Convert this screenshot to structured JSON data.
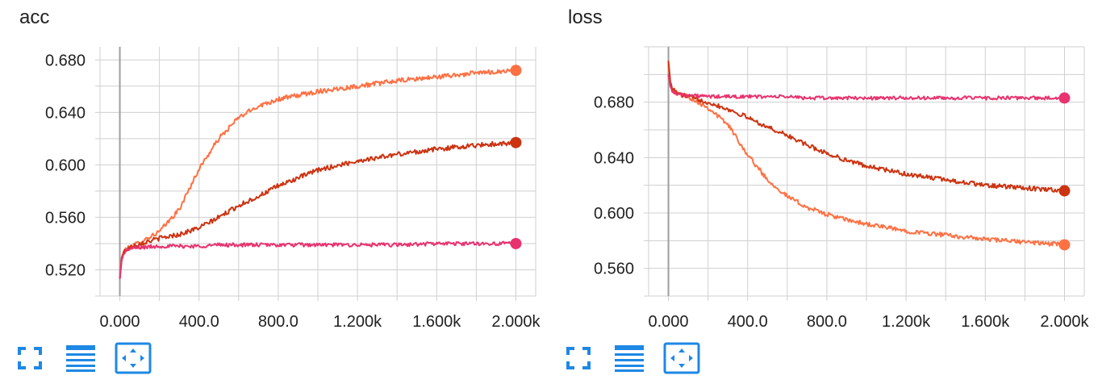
{
  "cards": [
    {
      "title": "acc",
      "toolbar": {
        "fullscreen_icon": "fullscreen-icon",
        "data_table_icon": "data-table-icon",
        "fit_domain_icon": "fit-domain-icon"
      }
    },
    {
      "title": "loss",
      "toolbar": {
        "fullscreen_icon": "fullscreen-icon",
        "data_table_icon": "data-table-icon",
        "fit_domain_icon": "fit-domain-icon"
      }
    }
  ],
  "colors": {
    "series_orange": "#ff7043",
    "series_dark_red": "#cc3311",
    "series_pink": "#e8336e",
    "grid": "#cfcfcf",
    "axis_zero_line": "#9e9e9e",
    "toolbar_icon": "#1e88e5"
  },
  "chart_data": [
    {
      "type": "line",
      "title": "acc",
      "xlabel": "",
      "ylabel": "",
      "xlim": [
        -100,
        2100
      ],
      "ylim": [
        0.5,
        0.69
      ],
      "x_ticks": [
        0,
        400,
        800,
        1200,
        1600,
        2000
      ],
      "x_tick_labels": [
        "0.000",
        "400.0",
        "800.0",
        "1.200k",
        "1.600k",
        "2.000k"
      ],
      "y_ticks": [
        0.52,
        0.56,
        0.6,
        0.64,
        0.68
      ],
      "y_tick_labels": [
        "0.520",
        "0.560",
        "0.600",
        "0.640",
        "0.680"
      ],
      "grid": true,
      "x": [
        0,
        10,
        25,
        50,
        100,
        200,
        300,
        400,
        500,
        600,
        700,
        800,
        900,
        1000,
        1200,
        1400,
        1600,
        1800,
        2000
      ],
      "series": [
        {
          "color": "#ff7043",
          "values": [
            0.513,
            0.53,
            0.535,
            0.537,
            0.541,
            0.549,
            0.566,
            0.597,
            0.62,
            0.636,
            0.645,
            0.65,
            0.653,
            0.656,
            0.66,
            0.664,
            0.667,
            0.67,
            0.672
          ]
        },
        {
          "color": "#cc3311",
          "values": [
            0.513,
            0.53,
            0.535,
            0.537,
            0.54,
            0.544,
            0.547,
            0.552,
            0.56,
            0.569,
            0.576,
            0.584,
            0.59,
            0.596,
            0.603,
            0.608,
            0.612,
            0.615,
            0.617
          ]
        },
        {
          "color": "#e8336e",
          "values": [
            0.513,
            0.528,
            0.534,
            0.536,
            0.537,
            0.538,
            0.538,
            0.538,
            0.539,
            0.539,
            0.539,
            0.539,
            0.539,
            0.539,
            0.539,
            0.539,
            0.54,
            0.54,
            0.54
          ]
        }
      ]
    },
    {
      "type": "line",
      "title": "loss",
      "xlabel": "",
      "ylabel": "",
      "xlim": [
        -100,
        2100
      ],
      "ylim": [
        0.54,
        0.72
      ],
      "x_ticks": [
        0,
        400,
        800,
        1200,
        1600,
        2000
      ],
      "x_tick_labels": [
        "0.000",
        "400.0",
        "800.0",
        "1.200k",
        "1.600k",
        "2.000k"
      ],
      "y_ticks": [
        0.56,
        0.6,
        0.64,
        0.68
      ],
      "y_tick_labels": [
        "0.560",
        "0.600",
        "0.640",
        "0.680"
      ],
      "grid": true,
      "x": [
        0,
        10,
        25,
        50,
        100,
        200,
        300,
        400,
        500,
        600,
        700,
        800,
        900,
        1000,
        1200,
        1400,
        1600,
        1800,
        2000
      ],
      "series": [
        {
          "color": "#ff7043",
          "values": [
            0.707,
            0.692,
            0.688,
            0.686,
            0.684,
            0.676,
            0.664,
            0.642,
            0.624,
            0.612,
            0.604,
            0.599,
            0.595,
            0.592,
            0.587,
            0.584,
            0.581,
            0.579,
            0.577
          ]
        },
        {
          "color": "#cc3311",
          "values": [
            0.71,
            0.694,
            0.689,
            0.686,
            0.684,
            0.68,
            0.675,
            0.669,
            0.662,
            0.656,
            0.649,
            0.643,
            0.638,
            0.634,
            0.628,
            0.624,
            0.62,
            0.618,
            0.616
          ]
        },
        {
          "color": "#e8336e",
          "values": [
            0.7,
            0.691,
            0.687,
            0.686,
            0.685,
            0.684,
            0.684,
            0.684,
            0.684,
            0.684,
            0.683,
            0.683,
            0.683,
            0.683,
            0.683,
            0.683,
            0.683,
            0.683,
            0.683
          ]
        }
      ]
    }
  ]
}
